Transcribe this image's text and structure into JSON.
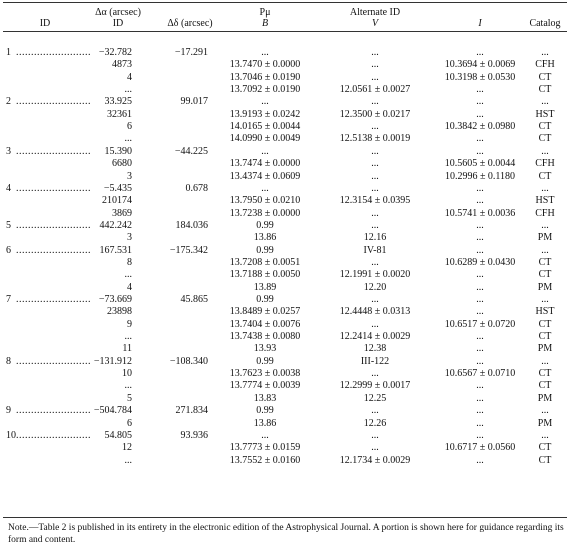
{
  "header": {
    "top": [
      "Δα (arcsec)",
      "Pμ",
      "Alternate ID"
    ],
    "bottom": [
      "ID",
      "ID",
      "Δδ (arcsec)",
      "B",
      "V",
      "I",
      "Catalog"
    ]
  },
  "table": {
    "rows": [
      [
        "1",
        "−32.782",
        "−17.291",
        "...",
        "...",
        "...",
        "..."
      ],
      [
        null,
        "4873",
        null,
        "13.7470 ± 0.0000",
        "...",
        "10.3694 ± 0.0069",
        "CFH"
      ],
      [
        null,
        "4",
        null,
        "13.7046 ± 0.0190",
        "...",
        "10.3198 ± 0.0530",
        "CT"
      ],
      [
        null,
        "...",
        null,
        "13.7092 ± 0.0190",
        "12.0561 ± 0.0027",
        "...",
        "CT"
      ],
      [
        "2",
        "33.925",
        "99.017",
        "...",
        "...",
        "...",
        "..."
      ],
      [
        null,
        "32361",
        null,
        "13.9193 ± 0.0242",
        "12.3500 ± 0.0217",
        "...",
        "HST"
      ],
      [
        null,
        "6",
        null,
        "14.0165 ± 0.0044",
        "...",
        "10.3842 ± 0.0980",
        "CT"
      ],
      [
        null,
        "...",
        null,
        "14.0990 ± 0.0049",
        "12.5138 ± 0.0019",
        "...",
        "CT"
      ],
      [
        "3",
        "15.390",
        "−44.225",
        "...",
        "...",
        "...",
        "..."
      ],
      [
        null,
        "6680",
        null,
        "13.7474 ± 0.0000",
        "...",
        "10.5605 ± 0.0044",
        "CFH"
      ],
      [
        null,
        "3",
        null,
        "13.4374 ± 0.0609",
        "...",
        "10.2996 ± 0.1180",
        "CT"
      ],
      [
        "4",
        "−5.435",
        "0.678",
        "...",
        "...",
        "...",
        "..."
      ],
      [
        null,
        "210174",
        null,
        "13.7950 ± 0.0210",
        "12.3154 ± 0.0395",
        "...",
        "HST"
      ],
      [
        null,
        "3869",
        null,
        "13.7238 ± 0.0000",
        "...",
        "10.5741 ± 0.0036",
        "CFH"
      ],
      [
        "5",
        "442.242",
        "184.036",
        "0.99",
        "...",
        "...",
        "..."
      ],
      [
        null,
        "3",
        null,
        "13.86",
        "12.16",
        "...",
        "PM"
      ],
      [
        "6",
        "167.531",
        "−175.342",
        "0.99",
        "IV-81",
        "...",
        "..."
      ],
      [
        null,
        "8",
        null,
        "13.7208 ± 0.0051",
        "...",
        "10.6289 ± 0.0430",
        "CT"
      ],
      [
        null,
        "...",
        null,
        "13.7188 ± 0.0050",
        "12.1991 ± 0.0020",
        "...",
        "CT"
      ],
      [
        null,
        "4",
        null,
        "13.89",
        "12.20",
        "...",
        "PM"
      ],
      [
        "7",
        "−73.669",
        "45.865",
        "0.99",
        "...",
        "...",
        "..."
      ],
      [
        null,
        "23898",
        null,
        "13.8489 ± 0.0257",
        "12.4448 ± 0.0313",
        "...",
        "HST"
      ],
      [
        null,
        "9",
        null,
        "13.7404 ± 0.0076",
        "...",
        "10.6517 ± 0.0720",
        "CT"
      ],
      [
        null,
        "...",
        null,
        "13.7438 ± 0.0080",
        "12.2414 ± 0.0029",
        "...",
        "CT"
      ],
      [
        null,
        "11",
        null,
        "13.93",
        "12.38",
        "...",
        "PM"
      ],
      [
        "8",
        "−131.912",
        "−108.340",
        "0.99",
        "III-122",
        "...",
        "..."
      ],
      [
        null,
        "10",
        null,
        "13.7623 ± 0.0038",
        "...",
        "10.6567 ± 0.0710",
        "CT"
      ],
      [
        null,
        "...",
        null,
        "13.7774 ± 0.0039",
        "12.2999 ± 0.0017",
        "...",
        "CT"
      ],
      [
        null,
        "5",
        null,
        "13.83",
        "12.25",
        "...",
        "PM"
      ],
      [
        "9",
        "−504.784",
        "271.834",
        "0.99",
        "...",
        "...",
        "..."
      ],
      [
        null,
        "6",
        null,
        "13.86",
        "12.26",
        "...",
        "PM"
      ],
      [
        "10",
        "54.805",
        "93.936",
        "...",
        "...",
        "...",
        "..."
      ],
      [
        null,
        "12",
        null,
        "13.7773 ± 0.0159",
        "...",
        "10.6717 ± 0.0560",
        "CT"
      ],
      [
        null,
        "...",
        null,
        "13.7552 ± 0.0160",
        "12.1734 ± 0.0029",
        "...",
        "CT"
      ]
    ]
  },
  "note": "Note.—Table 2 is published in its entirety in the electronic edition of the Astrophysical Journal. A portion is shown here for guidance regarding its form and content."
}
